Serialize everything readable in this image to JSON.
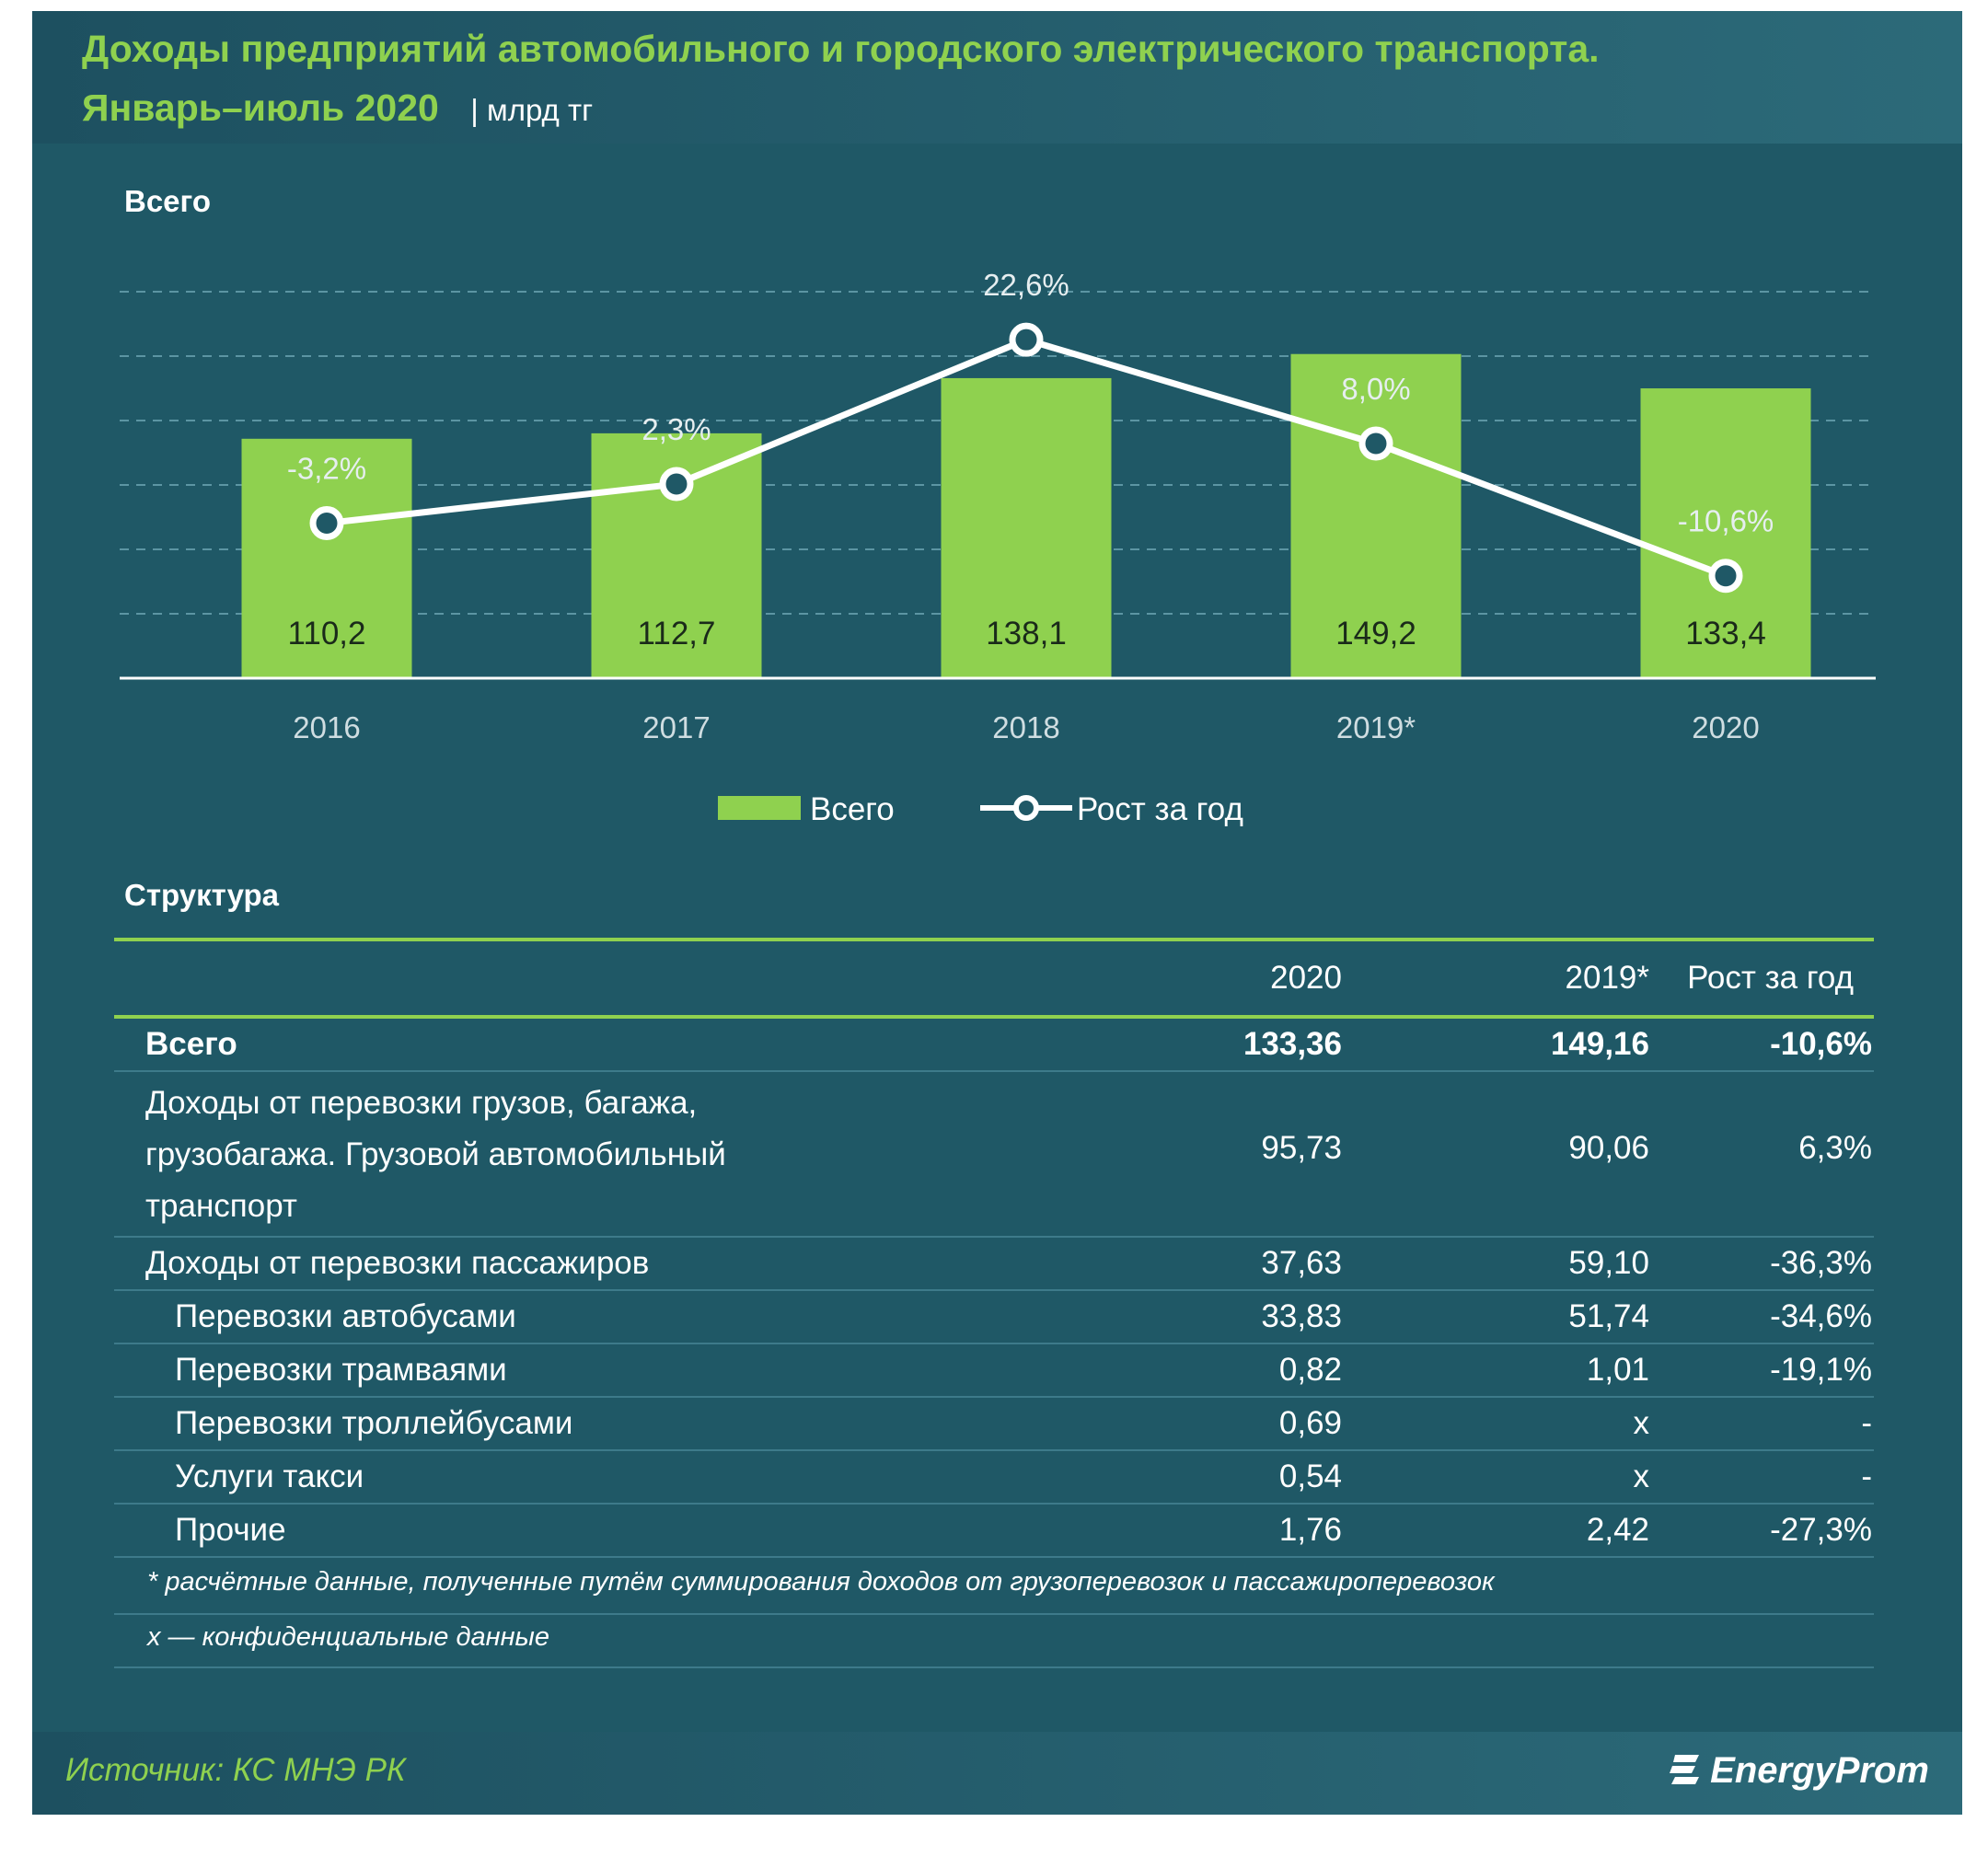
{
  "header": {
    "title": "Доходы предприятий автомобильного и городского электрического транспорта.",
    "subtitle": "Январь–июль 2020",
    "unit": "| млрд тг"
  },
  "sections": {
    "chart_label": "Всего",
    "table_label": "Структура"
  },
  "chart_data": {
    "type": "bar",
    "categories": [
      "2016",
      "2017",
      "2018",
      "2019*",
      "2020"
    ],
    "series": [
      {
        "name": "Всего",
        "type": "bar",
        "values": [
          110.2,
          112.7,
          138.1,
          149.2,
          133.4
        ],
        "labels": [
          "110,2",
          "112,7",
          "138,1",
          "149,2",
          "133,4"
        ],
        "color": "#8fd14f"
      },
      {
        "name": "Рост за год",
        "type": "line",
        "values": [
          -3.2,
          2.3,
          22.6,
          8.0,
          -10.6
        ],
        "labels": [
          "-3,2%",
          "2,3%",
          "22,6%",
          "8,0%",
          "-10,6%"
        ],
        "color": "#ffffff"
      }
    ],
    "bar_ylim": [
      0,
      180
    ],
    "line_ylim": [
      -25,
      30
    ],
    "grid": true,
    "legend_position": "bottom"
  },
  "table": {
    "headers": [
      "",
      "2020",
      "2019*",
      "Рост за год"
    ],
    "rows": [
      {
        "label": "Всего",
        "v2020": "133,36",
        "v2019": "149,16",
        "growth": "-10,6%",
        "bold": true,
        "indent": false
      },
      {
        "label": "Доходы от перевозки грузов, багажа, грузобагажа. Грузовой автомобильный транспорт",
        "v2020": "95,73",
        "v2019": "90,06",
        "growth": "6,3%",
        "bold": false,
        "indent": false
      },
      {
        "label": "Доходы от перевозки пассажиров",
        "v2020": "37,63",
        "v2019": "59,10",
        "growth": "-36,3%",
        "bold": false,
        "indent": false
      },
      {
        "label": "Перевозки автобусами",
        "v2020": "33,83",
        "v2019": "51,74",
        "growth": "-34,6%",
        "bold": false,
        "indent": true
      },
      {
        "label": "Перевозки трамваями",
        "v2020": "0,82",
        "v2019": "1,01",
        "growth": "-19,1%",
        "bold": false,
        "indent": true
      },
      {
        "label": "Перевозки троллейбусами",
        "v2020": "0,69",
        "v2019": "x",
        "growth": "-",
        "bold": false,
        "indent": true
      },
      {
        "label": "Услуги такси",
        "v2020": "0,54",
        "v2019": "x",
        "growth": "-",
        "bold": false,
        "indent": true
      },
      {
        "label": "Прочие",
        "v2020": "1,76",
        "v2019": "2,42",
        "growth": "-27,3%",
        "bold": false,
        "indent": true
      }
    ],
    "notes": [
      "* расчётные данные, полученные путём суммирования доходов от грузоперевозок и пассажироперевозок",
      "x — конфиденциальные данные"
    ]
  },
  "footer": {
    "source": "Источник: КС МНЭ РК",
    "brand": "EnergyProm",
    "brand_icon": "energyprom-logo-icon"
  },
  "colors": {
    "background": "#1f5866",
    "accent_green": "#8fd14f",
    "line": "#ffffff"
  }
}
